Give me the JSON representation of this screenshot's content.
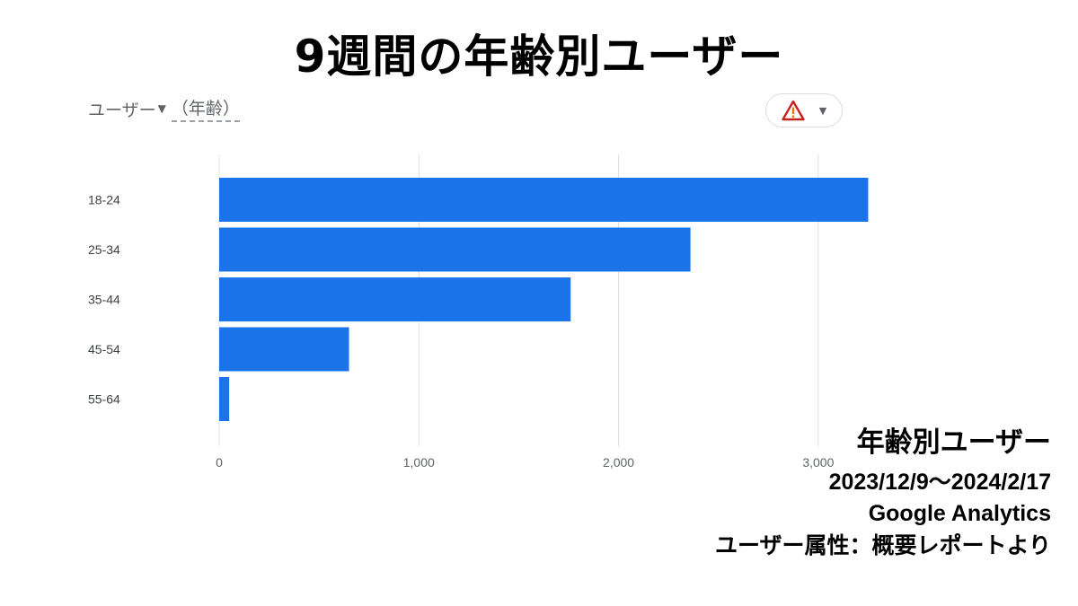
{
  "title": "9週間の年齢別ユーザー",
  "card": {
    "metric_label": "ユーザー",
    "dimension_label": "（年齢）",
    "warning_icon": "warning-triangle-icon"
  },
  "chart_data": {
    "type": "bar",
    "orientation": "horizontal",
    "categories": [
      "18-24",
      "25-34",
      "35-44",
      "45-54",
      "55-64"
    ],
    "values": [
      3250,
      2360,
      1760,
      650,
      50
    ],
    "xlim": [
      0,
      3500
    ],
    "xticks": [
      0,
      1000,
      2000,
      3000
    ],
    "xtick_labels": [
      "0",
      "1,000",
      "2,000",
      "3,000"
    ],
    "grid": "vertical",
    "bar_color": "#1a73e8"
  },
  "caption": {
    "title": "年齢別ユーザー",
    "date_range": "2023/12/9〜2024/2/17",
    "tool": "Google Analytics",
    "source": "ユーザー属性：概要レポートより"
  }
}
